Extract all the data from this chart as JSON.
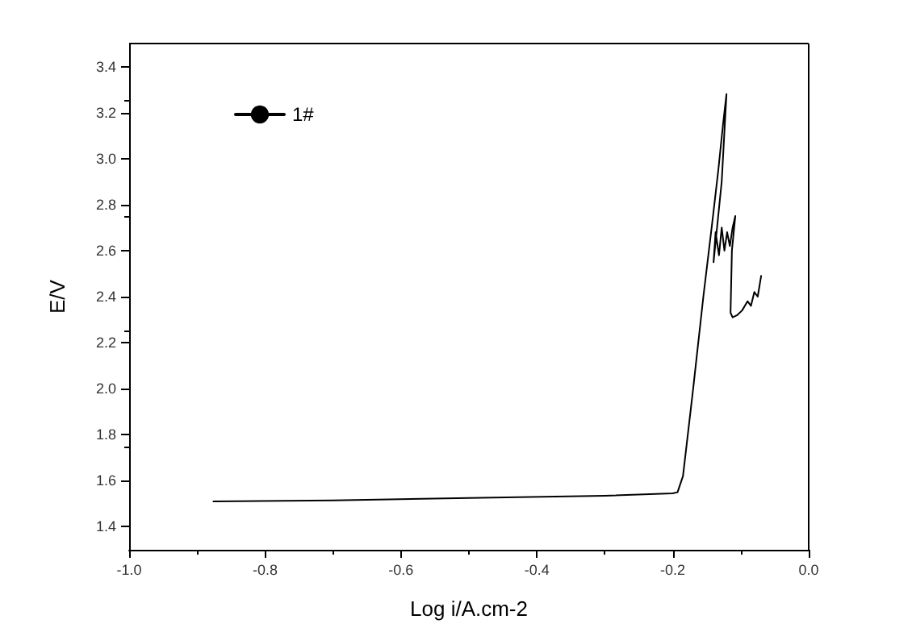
{
  "chart_data": {
    "type": "line",
    "xlabel": "Log i/A.cm-2",
    "ylabel": "E/V",
    "x": [
      -0.876,
      -0.7,
      -0.5,
      -0.3,
      -0.2,
      -0.193,
      -0.185,
      -0.17,
      -0.155,
      -0.142,
      -0.133,
      -0.126,
      -0.121,
      -0.128,
      -0.14,
      -0.137,
      -0.132,
      -0.128,
      -0.124,
      -0.12,
      -0.116,
      -0.112,
      -0.108,
      -0.113,
      -0.115,
      -0.112,
      -0.105,
      -0.098,
      -0.09,
      -0.085,
      -0.08,
      -0.075,
      -0.07
    ],
    "series": [
      {
        "name": "1#",
        "color": "#000000",
        "values": [
          1.51,
          1.515,
          1.525,
          1.535,
          1.545,
          1.55,
          1.62,
          2.0,
          2.4,
          2.72,
          2.95,
          3.15,
          3.28,
          2.9,
          2.55,
          2.68,
          2.58,
          2.7,
          2.6,
          2.68,
          2.62,
          2.7,
          2.75,
          2.6,
          2.33,
          2.31,
          2.32,
          2.34,
          2.38,
          2.36,
          2.42,
          2.4,
          2.49
        ]
      }
    ],
    "xlim": [
      -1.0,
      0.0
    ],
    "ylim": [
      1.3,
      3.5
    ],
    "xticks": [
      {
        "value": -1,
        "label": "-1.0"
      },
      {
        "value": -0.8,
        "label": "-0.8"
      },
      {
        "value": -0.6,
        "label": "-0.6"
      },
      {
        "value": -0.4,
        "label": "-0.4"
      },
      {
        "value": -0.2,
        "label": "-0.2"
      },
      {
        "value": 0,
        "label": "0.0"
      }
    ],
    "yticks": [
      1.4,
      1.6,
      1.8,
      {
        "value": 2,
        "label": "2.0"
      },
      2.2,
      2.4,
      2.6,
      2.8,
      {
        "value": 3,
        "label": "3.0"
      },
      3.2,
      3.4
    ],
    "legend": "top left",
    "grid": false,
    "marker": "none",
    "line_style": "solid"
  }
}
